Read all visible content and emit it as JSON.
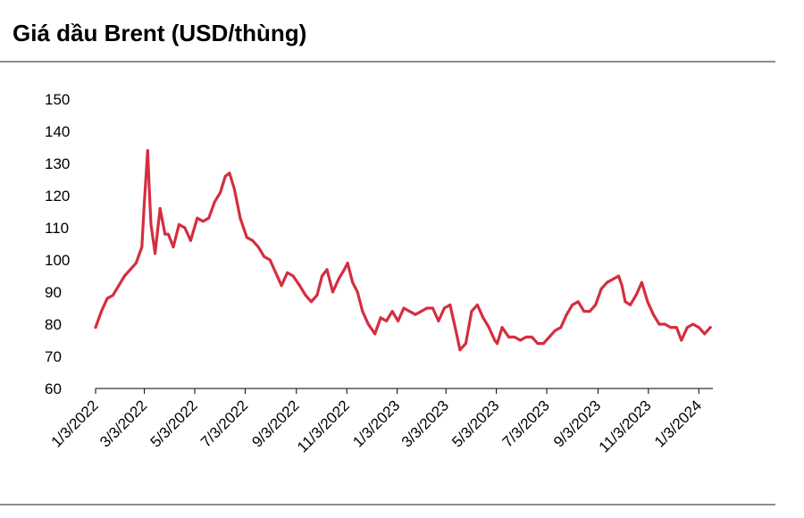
{
  "title": "Giá dầu Brent (USD/thùng)",
  "chart_data": {
    "type": "line",
    "title": "Giá dầu Brent (USD/thùng)",
    "xlabel": "",
    "ylabel": "",
    "ylim": [
      60,
      150
    ],
    "yticks": [
      60,
      70,
      80,
      90,
      100,
      110,
      120,
      130,
      140,
      150
    ],
    "xlim": [
      "2022-01-03",
      "2024-01-20"
    ],
    "xticks": [
      "1/3/2022",
      "3/3/2022",
      "5/3/2022",
      "7/3/2022",
      "9/3/2022",
      "11/3/2022",
      "1/3/2023",
      "3/3/2023",
      "5/3/2023",
      "7/3/2023",
      "9/3/2023",
      "11/3/2023",
      "1/3/2024"
    ],
    "grid": false,
    "legend": "none",
    "color": "#d42e3f",
    "series": [
      {
        "x": [
          "2022-01-03",
          "2022-01-10",
          "2022-01-17",
          "2022-01-24",
          "2022-01-31",
          "2022-02-07",
          "2022-02-14",
          "2022-02-21",
          "2022-02-28",
          "2022-03-03",
          "2022-03-07",
          "2022-03-09",
          "2022-03-11",
          "2022-03-16",
          "2022-03-22",
          "2022-03-28",
          "2022-04-01",
          "2022-04-07",
          "2022-04-14",
          "2022-04-21",
          "2022-04-28",
          "2022-05-06",
          "2022-05-13",
          "2022-05-20",
          "2022-05-27",
          "2022-06-03",
          "2022-06-09",
          "2022-06-14",
          "2022-06-20",
          "2022-06-27",
          "2022-07-05",
          "2022-07-12",
          "2022-07-19",
          "2022-07-26",
          "2022-08-02",
          "2022-08-09",
          "2022-08-16",
          "2022-08-23",
          "2022-08-30",
          "2022-09-07",
          "2022-09-14",
          "2022-09-21",
          "2022-09-28",
          "2022-10-04",
          "2022-10-10",
          "2022-10-17",
          "2022-10-24",
          "2022-10-31",
          "2022-11-04",
          "2022-11-10",
          "2022-11-16",
          "2022-11-22",
          "2022-11-29",
          "2022-12-07",
          "2022-12-14",
          "2022-12-21",
          "2022-12-28",
          "2023-01-04",
          "2023-01-11",
          "2023-01-18",
          "2023-01-25",
          "2023-02-01",
          "2023-02-08",
          "2023-02-15",
          "2023-02-22",
          "2023-03-01",
          "2023-03-08",
          "2023-03-15",
          "2023-03-20",
          "2023-03-27",
          "2023-04-03",
          "2023-04-10",
          "2023-04-17",
          "2023-04-24",
          "2023-05-01",
          "2023-05-04",
          "2023-05-10",
          "2023-05-18",
          "2023-05-25",
          "2023-06-01",
          "2023-06-08",
          "2023-06-15",
          "2023-06-22",
          "2023-06-29",
          "2023-07-06",
          "2023-07-13",
          "2023-07-20",
          "2023-07-27",
          "2023-08-03",
          "2023-08-10",
          "2023-08-17",
          "2023-08-24",
          "2023-08-31",
          "2023-09-07",
          "2023-09-14",
          "2023-09-21",
          "2023-09-28",
          "2023-10-02",
          "2023-10-06",
          "2023-10-12",
          "2023-10-19",
          "2023-10-26",
          "2023-11-02",
          "2023-11-09",
          "2023-11-16",
          "2023-11-23",
          "2023-11-30",
          "2023-12-07",
          "2023-12-13",
          "2023-12-20",
          "2023-12-27",
          "2024-01-03",
          "2024-01-10",
          "2024-01-17"
        ],
        "y": [
          79,
          84,
          88,
          89,
          92,
          95,
          97,
          99,
          104,
          118,
          134,
          122,
          111,
          102,
          116,
          108,
          108,
          104,
          111,
          110,
          106,
          113,
          112,
          113,
          118,
          121,
          126,
          127,
          122,
          113,
          107,
          106,
          104,
          101,
          100,
          96,
          92,
          96,
          95,
          92,
          89,
          87,
          89,
          95,
          97,
          90,
          94,
          97,
          99,
          93,
          90,
          84,
          80,
          77,
          82,
          81,
          84,
          81,
          85,
          84,
          83,
          84,
          85,
          85,
          81,
          85,
          86,
          78,
          72,
          74,
          84,
          86,
          82,
          79,
          75,
          74,
          79,
          76,
          76,
          75,
          76,
          76,
          74,
          74,
          76,
          78,
          79,
          83,
          86,
          87,
          84,
          84,
          86,
          91,
          93,
          94,
          95,
          92,
          87,
          86,
          89,
          93,
          87,
          83,
          80,
          80,
          79,
          79,
          75,
          79,
          80,
          79,
          77,
          79
        ]
      }
    ]
  }
}
